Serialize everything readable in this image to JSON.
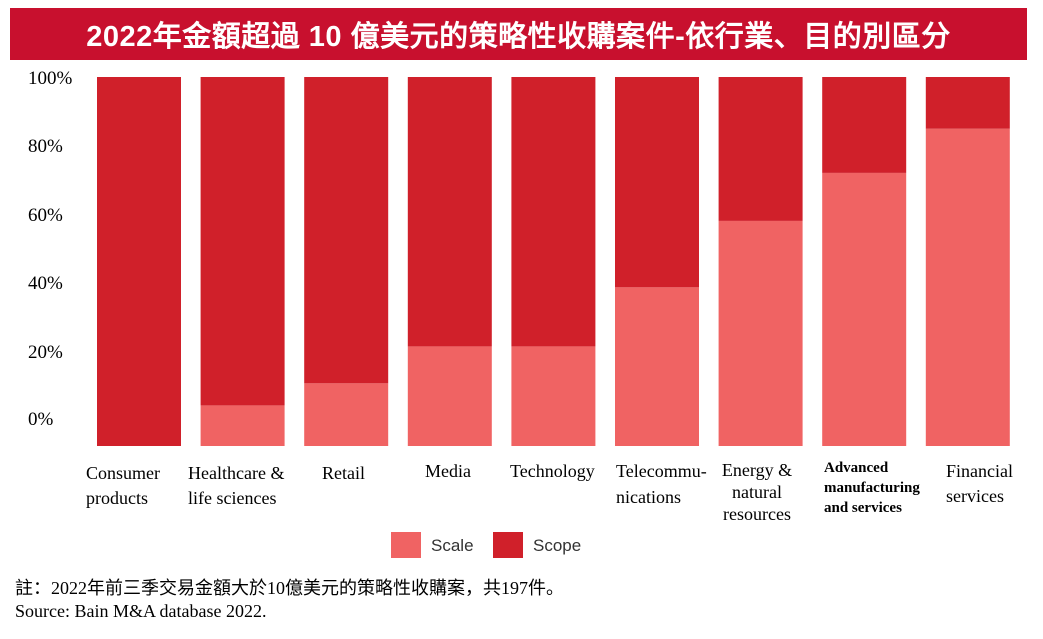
{
  "title": "2022年金額超過 10 億美元的策略性收購案件-依行業、目的別區分",
  "chart_data": {
    "type": "bar",
    "stacked": true,
    "categories": [
      "Consumer products",
      "Healthcare & life sciences",
      "Retail",
      "Media",
      "Technology",
      "Telecommunications",
      "Energy & natural resources",
      "Advanced manufacturing and services",
      "Financial services"
    ],
    "category_label_lines": [
      [
        "Consumer",
        "products"
      ],
      [
        "Healthcare &",
        "life sciences"
      ],
      [
        "Retail"
      ],
      [
        "Media"
      ],
      [
        "Technology"
      ],
      [
        "Telecommu-",
        "nications"
      ],
      [
        "Energy &",
        "natural",
        "resources"
      ],
      [
        "Advanced",
        "manufacturing",
        "and services"
      ],
      [
        "Financial",
        "services"
      ]
    ],
    "series": [
      {
        "name": "Scale",
        "color": "#f06363",
        "values": [
          0,
          11,
          17,
          27,
          27,
          43,
          61,
          74,
          86
        ]
      },
      {
        "name": "Scope",
        "color": "#d0202a",
        "values": [
          100,
          89,
          83,
          73,
          73,
          57,
          39,
          26,
          14
        ]
      }
    ],
    "y_ticks": [
      "100%",
      "80%",
      "60%",
      "40%",
      "20%",
      "0%"
    ],
    "ylim": [
      0,
      100
    ],
    "grid": false,
    "legend_position": "bottom"
  },
  "footnote": {
    "note": "註：2022年前三季交易金額大於10億美元的策略性收購案，共197件。",
    "source": "Source: Bain M&A database 2022."
  }
}
